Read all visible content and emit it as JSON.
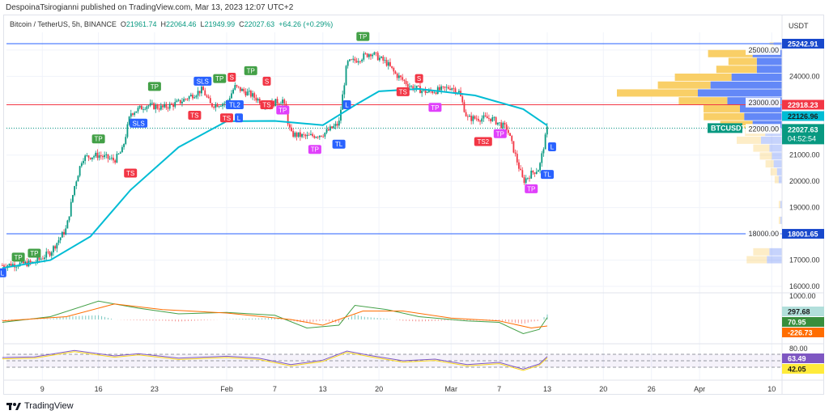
{
  "publisher_line": "DespoinaTsirogianni published on TradingView.com, Mar 13, 2023 12:07 UTC+2",
  "legend": {
    "symbol": "Bitcoin / TetherUS, 5h, BINANCE",
    "o_label": "O",
    "o": "21961.74",
    "h_label": "H",
    "h": "22064.46",
    "l_label": "L",
    "l": "21949.99",
    "c_label": "C",
    "c": "22027.63",
    "change": "+64.26 (+0.29%)"
  },
  "price_axis": {
    "currency": "USDT",
    "ticks": [
      "25000.00",
      "24000.00",
      "23000.00",
      "22000.00",
      "21000.00",
      "20000.00",
      "19000.00",
      "18000.00",
      "17000.00",
      "16000.00"
    ],
    "tick_values": [
      25000,
      24000,
      23000,
      22000,
      21000,
      20000,
      19000,
      18000,
      17000,
      16000
    ]
  },
  "labels": {
    "resistance": "25242.91",
    "red_line": "22918.23",
    "ema": "22126.96",
    "symbol_tag": "BTCUSDT",
    "last": "22027.63",
    "countdown": "04:52:54",
    "support": "18001.65",
    "macd_axis": "1000.00",
    "macd_hist": "297.68",
    "macd_line": "70.95",
    "macd_signal": "-226.73",
    "rsi_axis": "80.00",
    "rsi": "63.49",
    "rsi_ma": "42.05"
  },
  "colors": {
    "up": "#089981",
    "down": "#f23645",
    "ema": "#00bcd4",
    "resistance": "#2962ff",
    "red_line": "#f23645",
    "vp_up": "#5b82f7",
    "vp_down": "#f9cc5f",
    "rsi": "#7e57c2"
  },
  "x_axis": {
    "ticks": [
      {
        "label": "9",
        "day": 9
      },
      {
        "label": "16",
        "day": 16
      },
      {
        "label": "23",
        "day": 23
      },
      {
        "label": "Feb",
        "day": 32
      },
      {
        "label": "7",
        "day": 38
      },
      {
        "label": "13",
        "day": 44
      },
      {
        "label": "20",
        "day": 51
      },
      {
        "label": "Mar",
        "day": 60
      },
      {
        "label": "7",
        "day": 66
      },
      {
        "label": "13",
        "day": 72
      },
      {
        "label": "20",
        "day": 79
      },
      {
        "label": "26",
        "day": 85
      },
      {
        "label": "Apr",
        "day": 91
      },
      {
        "label": "10",
        "day": 100
      }
    ]
  },
  "chart_data": {
    "type": "candlestick",
    "x_unit": "day of 2023",
    "price_path": [
      [
        4,
        16800
      ],
      [
        8,
        16900
      ],
      [
        10,
        17300
      ],
      [
        12,
        18200
      ],
      [
        13,
        19800
      ],
      [
        14,
        20900
      ],
      [
        16,
        21000
      ],
      [
        18,
        20800
      ],
      [
        19,
        21200
      ],
      [
        20,
        22600
      ],
      [
        22,
        22900
      ],
      [
        24,
        22800
      ],
      [
        26,
        23000
      ],
      [
        29,
        23500
      ],
      [
        30,
        22900
      ],
      [
        32,
        23000
      ],
      [
        33,
        23600
      ],
      [
        35,
        23300
      ],
      [
        37,
        22900
      ],
      [
        39,
        23100
      ],
      [
        40,
        21800
      ],
      [
        42,
        21700
      ],
      [
        44,
        21800
      ],
      [
        46,
        22200
      ],
      [
        47,
        24500
      ],
      [
        48,
        24600
      ],
      [
        50,
        24900
      ],
      [
        52,
        24500
      ],
      [
        53,
        24100
      ],
      [
        55,
        23600
      ],
      [
        57,
        23400
      ],
      [
        59,
        23500
      ],
      [
        60,
        23600
      ],
      [
        61,
        23400
      ],
      [
        62,
        22400
      ],
      [
        64,
        22400
      ],
      [
        65,
        22400
      ],
      [
        67,
        22000
      ],
      [
        68,
        21000
      ],
      [
        69,
        20000
      ],
      [
        70,
        20300
      ],
      [
        71,
        20500
      ],
      [
        72,
        22027
      ]
    ],
    "ema": [
      [
        4,
        16700
      ],
      [
        10,
        17000
      ],
      [
        15,
        17900
      ],
      [
        20,
        19670
      ],
      [
        26,
        21300
      ],
      [
        32,
        22290
      ],
      [
        38,
        22300
      ],
      [
        44,
        22140
      ],
      [
        48,
        22900
      ],
      [
        51,
        23430
      ],
      [
        56,
        23520
      ],
      [
        63,
        23270
      ],
      [
        69,
        22750
      ],
      [
        72,
        22127
      ]
    ],
    "macd": [
      [
        4,
        -100
      ],
      [
        10,
        100
      ],
      [
        16,
        650
      ],
      [
        21,
        400
      ],
      [
        26,
        200
      ],
      [
        32,
        250
      ],
      [
        38,
        150
      ],
      [
        42,
        -300
      ],
      [
        46,
        -200
      ],
      [
        48,
        500
      ],
      [
        52,
        350
      ],
      [
        56,
        100
      ],
      [
        62,
        -50
      ],
      [
        66,
        -100
      ],
      [
        69,
        -500
      ],
      [
        71,
        -350
      ],
      [
        72,
        71
      ]
    ],
    "macd_signal_series": [
      [
        4,
        -50
      ],
      [
        12,
        100
      ],
      [
        18,
        550
      ],
      [
        24,
        350
      ],
      [
        32,
        230
      ],
      [
        40,
        0
      ],
      [
        44,
        -200
      ],
      [
        49,
        300
      ],
      [
        54,
        300
      ],
      [
        60,
        50
      ],
      [
        66,
        -50
      ],
      [
        70,
        -300
      ],
      [
        72,
        -227
      ]
    ],
    "rsi_series": [
      [
        4,
        60
      ],
      [
        8,
        62
      ],
      [
        13,
        82
      ],
      [
        18,
        65
      ],
      [
        21,
        72
      ],
      [
        26,
        58
      ],
      [
        32,
        64
      ],
      [
        36,
        58
      ],
      [
        40,
        38
      ],
      [
        44,
        52
      ],
      [
        47,
        80
      ],
      [
        50,
        66
      ],
      [
        54,
        50
      ],
      [
        58,
        55
      ],
      [
        62,
        38
      ],
      [
        66,
        45
      ],
      [
        69,
        24
      ],
      [
        71,
        40
      ],
      [
        72,
        63
      ]
    ],
    "signals": [
      {
        "t": "TP",
        "d": 6,
        "p": 17100,
        "c": "up"
      },
      {
        "t": "TP",
        "d": 8,
        "p": 17250,
        "c": "up"
      },
      {
        "t": "L",
        "d": 4,
        "p": 16500,
        "c": "blue"
      },
      {
        "t": "TP",
        "d": 16,
        "p": 21600,
        "c": "up"
      },
      {
        "t": "TS",
        "d": 20,
        "p": 20300,
        "c": "down"
      },
      {
        "t": "SLS",
        "d": 21,
        "p": 22200,
        "c": "blue"
      },
      {
        "t": "TP",
        "d": 23,
        "p": 23600,
        "c": "up"
      },
      {
        "t": "TS",
        "d": 28,
        "p": 22500,
        "c": "down"
      },
      {
        "t": "SLS",
        "d": 29,
        "p": 23800,
        "c": "blue"
      },
      {
        "t": "TP",
        "d": 31,
        "p": 23900,
        "c": "up"
      },
      {
        "t": "S",
        "d": 32,
        "p": 23950,
        "c": "down"
      },
      {
        "t": "TS",
        "d": 32,
        "p": 22400,
        "c": "down"
      },
      {
        "t": "L",
        "d": 33,
        "p": 22400,
        "c": "blue"
      },
      {
        "t": "TL2",
        "d": 33,
        "p": 22900,
        "c": "blue"
      },
      {
        "t": "TP",
        "d": 35,
        "p": 24200,
        "c": "up"
      },
      {
        "t": "S",
        "d": 37,
        "p": 23800,
        "c": "down"
      },
      {
        "t": "TS",
        "d": 37,
        "p": 22900,
        "c": "down"
      },
      {
        "t": "TP",
        "d": 39,
        "p": 22700,
        "c": "magenta"
      },
      {
        "t": "TP",
        "d": 43,
        "p": 21200,
        "c": "magenta"
      },
      {
        "t": "TL",
        "d": 46,
        "p": 21400,
        "c": "blue"
      },
      {
        "t": "L",
        "d": 47,
        "p": 22900,
        "c": "blue"
      },
      {
        "t": "TP",
        "d": 49,
        "p": 25500,
        "c": "up"
      },
      {
        "t": "TS",
        "d": 54,
        "p": 23400,
        "c": "down"
      },
      {
        "t": "S",
        "d": 56,
        "p": 23900,
        "c": "down"
      },
      {
        "t": "TP",
        "d": 58,
        "p": 22800,
        "c": "magenta"
      },
      {
        "t": "TS2",
        "d": 64,
        "p": 21500,
        "c": "down"
      },
      {
        "t": "TP",
        "d": 66,
        "p": 21800,
        "c": "magenta"
      },
      {
        "t": "TP",
        "d": 70,
        "p": 19700,
        "c": "magenta"
      },
      {
        "t": "TL",
        "d": 72,
        "p": 20250,
        "c": "blue"
      },
      {
        "t": "L",
        "d": 72.6,
        "p": 21300,
        "c": "blue"
      }
    ],
    "volume_profile": [
      [
        25150,
        0.05,
        0.1
      ],
      [
        24850,
        0.55,
        0.35
      ],
      [
        24550,
        0.35,
        0.3
      ],
      [
        24250,
        0.5,
        0.3
      ],
      [
        23950,
        0.7,
        0.6
      ],
      [
        23650,
        0.65,
        0.85
      ],
      [
        23350,
        1.0,
        1.0
      ],
      [
        23050,
        0.6,
        0.65
      ],
      [
        22750,
        0.45,
        0.5
      ],
      [
        22450,
        0.5,
        0.45
      ],
      [
        22150,
        0.4,
        0.35
      ],
      [
        21850,
        0.25,
        0.2
      ],
      [
        21550,
        0.3,
        0.25
      ],
      [
        21250,
        0.2,
        0.15
      ],
      [
        20950,
        0.15,
        0.12
      ],
      [
        20650,
        0.1,
        0.1
      ],
      [
        20350,
        0.08,
        0.06
      ],
      [
        20050,
        0.05,
        0.04
      ],
      [
        19100,
        0.02,
        0.02
      ],
      [
        18500,
        0.02,
        0.02
      ],
      [
        17300,
        0.2,
        0.15
      ],
      [
        17000,
        0.25,
        0.18
      ]
    ]
  },
  "footer": {
    "brand": "TradingView"
  }
}
